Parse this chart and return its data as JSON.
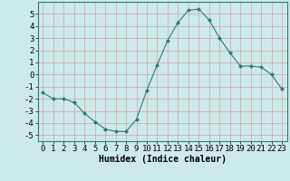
{
  "x": [
    0,
    1,
    2,
    3,
    4,
    5,
    6,
    7,
    8,
    9,
    10,
    11,
    12,
    13,
    14,
    15,
    16,
    17,
    18,
    19,
    20,
    21,
    22,
    23
  ],
  "y": [
    -1.5,
    -2.0,
    -2.0,
    -2.3,
    -3.2,
    -3.9,
    -4.5,
    -4.7,
    -4.7,
    -3.7,
    -1.3,
    0.8,
    2.8,
    4.3,
    5.3,
    5.4,
    4.5,
    3.0,
    1.8,
    0.7,
    0.7,
    0.6,
    0.0,
    -1.2
  ],
  "xlabel": "Humidex (Indice chaleur)",
  "ylim": [
    -5.5,
    6.0
  ],
  "xlim": [
    -0.5,
    23.5
  ],
  "yticks": [
    -5,
    -4,
    -3,
    -2,
    -1,
    0,
    1,
    2,
    3,
    4,
    5
  ],
  "xticks": [
    0,
    1,
    2,
    3,
    4,
    5,
    6,
    7,
    8,
    9,
    10,
    11,
    12,
    13,
    14,
    15,
    16,
    17,
    18,
    19,
    20,
    21,
    22,
    23
  ],
  "line_color": "#2e7d6e",
  "marker_color": "#2e7d6e",
  "bg_color": "#cceaea",
  "grid_color": "#d4a0a0",
  "xlabel_fontsize": 7,
  "tick_fontsize": 6.5
}
